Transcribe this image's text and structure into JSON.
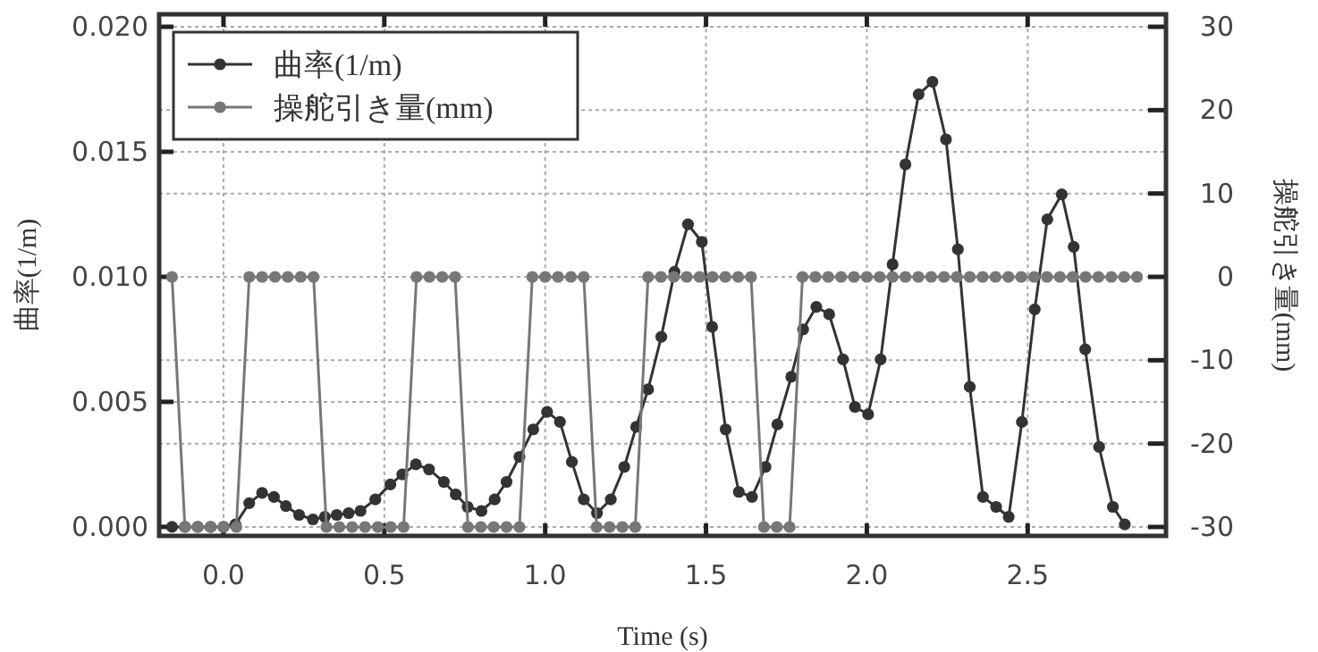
{
  "chart_data": {
    "type": "line",
    "xlabel": "Time (s)",
    "ylabel": "曲率(1/m)",
    "y2label": "操舵引き量(mm)",
    "xlim": [
      -0.2,
      2.93
    ],
    "xticks": [
      {
        "value": 0,
        "label": "0.0"
      },
      {
        "value": 0.5,
        "label": "0.5"
      },
      {
        "value": 1,
        "label": "1.0"
      },
      {
        "value": 1.5,
        "label": "1.5"
      },
      {
        "value": 2,
        "label": "2.0"
      },
      {
        "value": 2.5,
        "label": "2.5"
      }
    ],
    "ylim": [
      -0.00036,
      0.0205
    ],
    "yticks": [
      {
        "value": 0,
        "label": "0.000"
      },
      {
        "value": 0.005,
        "label": "0.005"
      },
      {
        "value": 0.01,
        "label": "0.010"
      },
      {
        "value": 0.015,
        "label": "0.015"
      },
      {
        "value": 0.02,
        "label": "0.020"
      }
    ],
    "y2lim": [
      -31.07,
      31.5
    ],
    "y2ticks": [
      -30,
      -20,
      -10,
      0,
      10,
      20,
      30
    ],
    "grid": true,
    "legend": "top left",
    "marker": "circle",
    "line_style": "solid",
    "series": [
      {
        "name": "曲率(1/m)",
        "color": "#333333",
        "x": [
          -0.16,
          -0.12,
          -0.08,
          -0.04,
          0.0,
          0.037,
          0.08,
          0.12,
          0.157,
          0.194,
          0.235,
          0.278,
          0.315,
          0.352,
          0.389,
          0.426,
          0.472,
          0.519,
          0.556,
          0.598,
          0.639,
          0.685,
          0.722,
          0.759,
          0.802,
          0.843,
          0.88,
          0.92,
          0.963,
          1.006,
          1.046,
          1.083,
          1.12,
          1.161,
          1.204,
          1.246,
          1.283,
          1.32,
          1.361,
          1.402,
          1.444,
          1.487,
          1.519,
          1.561,
          1.602,
          1.643,
          1.685,
          1.722,
          1.765,
          1.802,
          1.843,
          1.883,
          1.926,
          1.963,
          2.004,
          2.043,
          2.08,
          2.12,
          2.161,
          2.204,
          2.246,
          2.283,
          2.32,
          2.361,
          2.402,
          2.441,
          2.482,
          2.522,
          2.561,
          2.606,
          2.643,
          2.679,
          2.722,
          2.765,
          2.802
        ],
        "values": [
          0,
          0,
          0,
          0,
          0,
          0.0001,
          0.00095,
          0.00136,
          0.0012,
          0.00083,
          0.00048,
          0.0003,
          0.0004,
          0.00048,
          0.00055,
          0.00064,
          0.0011,
          0.0017,
          0.0021,
          0.0025,
          0.0023,
          0.0018,
          0.0013,
          0.0008,
          0.00064,
          0.0011,
          0.0018,
          0.0028,
          0.0039,
          0.0046,
          0.0042,
          0.0026,
          0.0011,
          0.00055,
          0.0011,
          0.0024,
          0.004,
          0.0055,
          0.0076,
          0.0102,
          0.0121,
          0.0114,
          0.008,
          0.0039,
          0.0014,
          0.0012,
          0.0024,
          0.0041,
          0.006,
          0.0079,
          0.0088,
          0.0085,
          0.0067,
          0.0048,
          0.0045,
          0.0067,
          0.0105,
          0.0145,
          0.0173,
          0.0178,
          0.0155,
          0.0111,
          0.0056,
          0.0012,
          0.0008,
          0.0004,
          0.0042,
          0.0087,
          0.0123,
          0.0133,
          0.0112,
          0.0071,
          0.0032,
          0.0008,
          0.0001
        ]
      },
      {
        "name": "操舵引き量(mm)",
        "color": "#777777",
        "axis": "y2",
        "x": [
          -0.16,
          -0.12,
          -0.08,
          -0.04,
          0,
          0.04,
          0.08,
          0.12,
          0.16,
          0.2,
          0.24,
          0.28,
          0.32,
          0.36,
          0.4,
          0.44,
          0.48,
          0.52,
          0.56,
          0.6,
          0.64,
          0.68,
          0.72,
          0.76,
          0.8,
          0.84,
          0.88,
          0.92,
          0.96,
          1.0,
          1.04,
          1.08,
          1.12,
          1.16,
          1.2,
          1.24,
          1.28,
          1.32,
          1.36,
          1.4,
          1.44,
          1.48,
          1.52,
          1.56,
          1.6,
          1.64,
          1.68,
          1.72,
          1.76,
          1.8,
          1.84,
          1.88,
          1.92,
          1.96,
          2.0,
          2.04,
          2.08,
          2.12,
          2.16,
          2.2,
          2.24,
          2.28,
          2.32,
          2.36,
          2.4,
          2.44,
          2.48,
          2.52,
          2.56,
          2.6,
          2.64,
          2.68,
          2.72,
          2.76,
          2.8,
          2.84
        ],
        "values": [
          0,
          -30,
          -30,
          -30,
          -30,
          -30,
          0,
          0,
          0,
          0,
          0,
          0,
          -30,
          -30,
          -30,
          -30,
          -30,
          -30,
          -30,
          0,
          0,
          0,
          0,
          -30,
          -30,
          -30,
          -30,
          -30,
          0,
          0,
          0,
          0,
          0,
          -30,
          -30,
          -30,
          -30,
          0,
          0,
          0,
          0,
          0,
          0,
          0,
          0,
          0,
          -30,
          -30,
          -30,
          0,
          0,
          0,
          0,
          0,
          0,
          0,
          0,
          0,
          0,
          0,
          0,
          0,
          0,
          0,
          0,
          0,
          0,
          0,
          0,
          0,
          0,
          0,
          0,
          0,
          0,
          0
        ]
      }
    ]
  }
}
